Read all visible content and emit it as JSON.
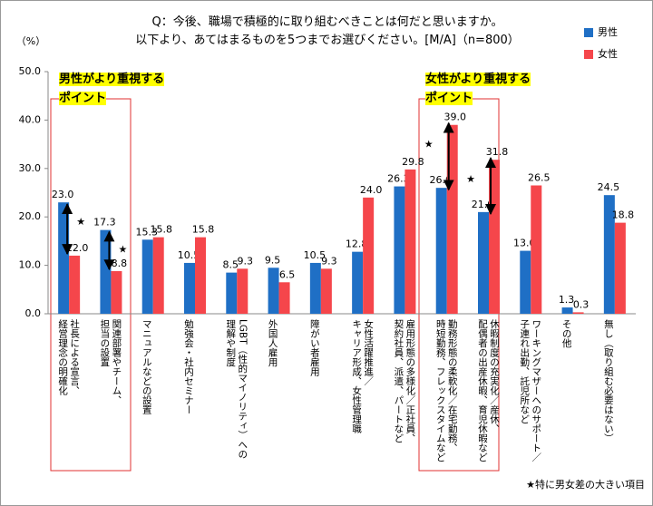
{
  "chart_data": {
    "type": "bar",
    "title": "Q：今後、職場で積極的に取り組むべきことは何だと思いますか。",
    "subtitle": "以下より、あてはまるものを5つまでお選びください。[M/A]（n=800）",
    "y_unit": "（%）",
    "categories": [
      "社長による宣言、\n経営理念の明確化",
      "関連部署やチーム、\n担当の設置",
      "マニュアルなどの設置",
      "勉強会・社内セミナー",
      "LGBT（性的マイノリティ）への\n理解や制度",
      "外国人雇用",
      "障がい者雇用",
      "女性活躍推進／\nキャリア形成、女性管理職",
      "雇用形態の多様化／正社員、\n契約社員、派遣、パートなど",
      "勤務形態の柔軟化／在宅勤務、\n時短勤務、フレックスタイムなど",
      "休暇制度の充実化／産休、\n配偶者の出産休暇、育児休暇など",
      "ワーキングマザーへのサポート／\n子連れ出勤、託児所など",
      "その他",
      "無し（取り組む必要はない）"
    ],
    "series": [
      {
        "name": "男性",
        "color": "#1f6fc5",
        "values": [
          23.0,
          17.3,
          15.3,
          10.5,
          8.5,
          9.5,
          10.5,
          12.8,
          26.3,
          26.0,
          21.0,
          13.0,
          1.3,
          24.5
        ],
        "value_labels": [
          "23.0",
          "17.3",
          "15.3",
          "10.5",
          "8.5",
          "9.5",
          "10.5",
          "12.8",
          "26.3",
          "26.0",
          "21.0",
          "13.0",
          "1.3",
          "24.5"
        ]
      },
      {
        "name": "女性",
        "color": "#f5464b",
        "values": [
          12.0,
          8.8,
          15.8,
          15.8,
          9.3,
          6.5,
          9.3,
          24.0,
          29.8,
          39.0,
          31.8,
          26.5,
          0.3,
          18.8
        ],
        "value_labels": [
          "12.0",
          "8.8",
          "15.8",
          "15.8",
          "9.3",
          "6.5",
          "9.3",
          "24.0",
          "29.8",
          "39.0",
          "31.8",
          "26.5",
          "0.3",
          "18.8"
        ]
      }
    ],
    "ylim": [
      0,
      50
    ],
    "yticks": [
      {
        "value": 0,
        "label": "0.0"
      },
      {
        "value": 10,
        "label": "10.0"
      },
      {
        "value": 20,
        "label": "20.0"
      },
      {
        "value": 30,
        "label": "30.0"
      },
      {
        "value": 40,
        "label": "40.0"
      },
      {
        "value": 50,
        "label": "50.0"
      }
    ],
    "grid": false,
    "legend": "top-right",
    "annotations": {
      "male_point": "男性がより重視する\nポイント",
      "female_point": "女性がより重視する\nポイント",
      "star": "★",
      "footnote": "★特に男女差の大きい項目"
    }
  }
}
